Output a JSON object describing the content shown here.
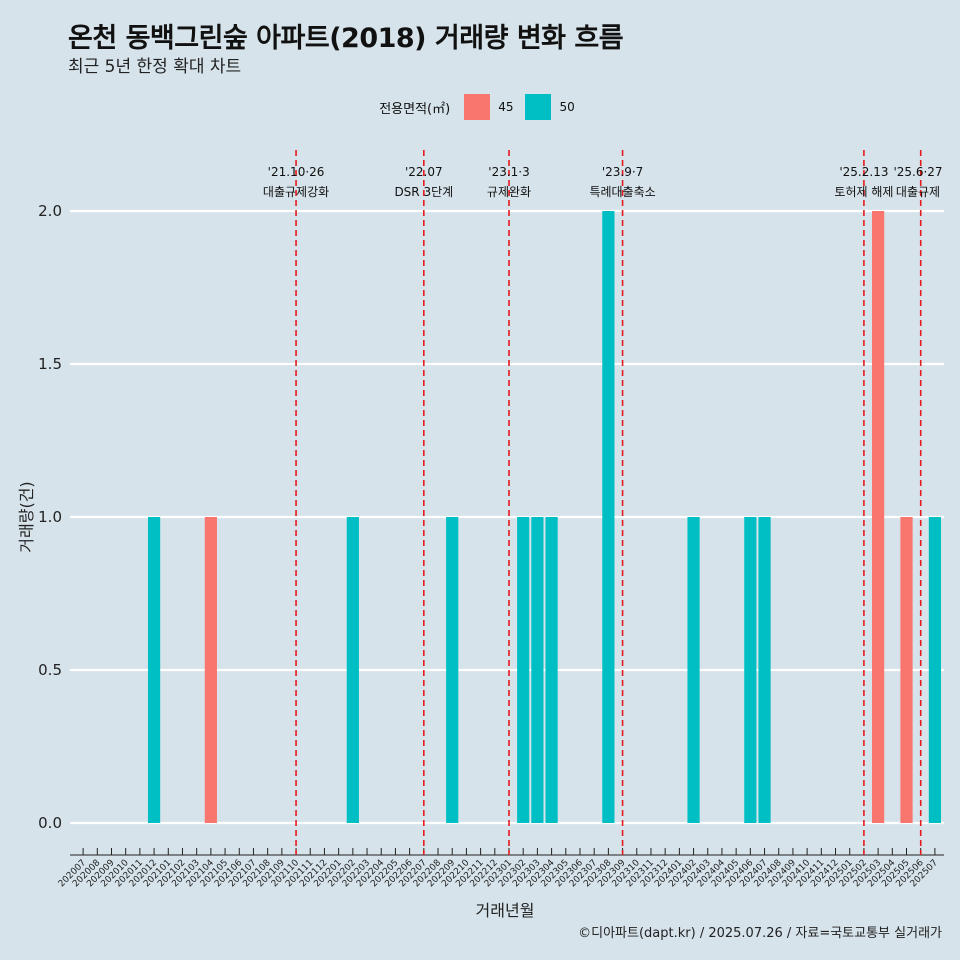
{
  "title": "온천 동백그린숲 아파트(2018) 거래량 변화 흐름",
  "subtitle": "최근 5년 한정 확대 차트",
  "legend": {
    "title": "전용면적(㎡)",
    "items": [
      {
        "label": "45",
        "color": "#f8766d"
      },
      {
        "label": "50",
        "color": "#00bfc4"
      }
    ]
  },
  "caption": "©디아파트(dapt.kr) / 2025.07.26 / 자료=국토교통부 실거래가",
  "chart_data": {
    "type": "bar",
    "xlabel": "거래년월",
    "ylabel": "거래량(건)",
    "ylim": [
      0,
      2
    ],
    "yticks": [
      "0.0",
      "0.5",
      "1.0",
      "1.5",
      "2.0"
    ],
    "categories": [
      "202007",
      "202008",
      "202009",
      "202010",
      "202011",
      "202012",
      "202101",
      "202102",
      "202103",
      "202104",
      "202105",
      "202106",
      "202107",
      "202108",
      "202109",
      "202110",
      "202111",
      "202112",
      "202201",
      "202202",
      "202203",
      "202204",
      "202205",
      "202206",
      "202207",
      "202208",
      "202209",
      "202210",
      "202211",
      "202212",
      "202301",
      "202302",
      "202303",
      "202304",
      "202305",
      "202306",
      "202307",
      "202308",
      "202309",
      "202310",
      "202311",
      "202312",
      "202401",
      "202402",
      "202403",
      "202404",
      "202405",
      "202406",
      "202407",
      "202408",
      "202409",
      "202410",
      "202411",
      "202412",
      "202501",
      "202502",
      "202503",
      "202504",
      "202505",
      "202506",
      "202507"
    ],
    "series": [
      {
        "name": "45",
        "color": "#f8766d",
        "points": [
          {
            "x": "202104",
            "y": 1
          },
          {
            "x": "202503",
            "y": 2
          },
          {
            "x": "202505",
            "y": 1
          }
        ]
      },
      {
        "name": "50",
        "color": "#00bfc4",
        "points": [
          {
            "x": "202012",
            "y": 1
          },
          {
            "x": "202202",
            "y": 1
          },
          {
            "x": "202209",
            "y": 1
          },
          {
            "x": "202302",
            "y": 1
          },
          {
            "x": "202303",
            "y": 1
          },
          {
            "x": "202304",
            "y": 1
          },
          {
            "x": "202308",
            "y": 2
          },
          {
            "x": "202402",
            "y": 1
          },
          {
            "x": "202406",
            "y": 1
          },
          {
            "x": "202407",
            "y": 1
          },
          {
            "x": "202507",
            "y": 1
          }
        ]
      }
    ],
    "events": [
      {
        "x": "202110",
        "date": "'21.10·26",
        "label": "대출규제강화"
      },
      {
        "x": "202207",
        "date": "'22.07",
        "label": "DSR 3단계"
      },
      {
        "x": "202301",
        "date": "'23.1·3",
        "label": "규제완화"
      },
      {
        "x": "202309",
        "date": "'23.9·7",
        "label": "특례대출축소"
      },
      {
        "x": "202502",
        "date": "'25.2.13",
        "label": "토허제 해제"
      },
      {
        "x": "202506",
        "date": "'25.6·27",
        "label": "대출규제"
      }
    ],
    "grid": true
  }
}
